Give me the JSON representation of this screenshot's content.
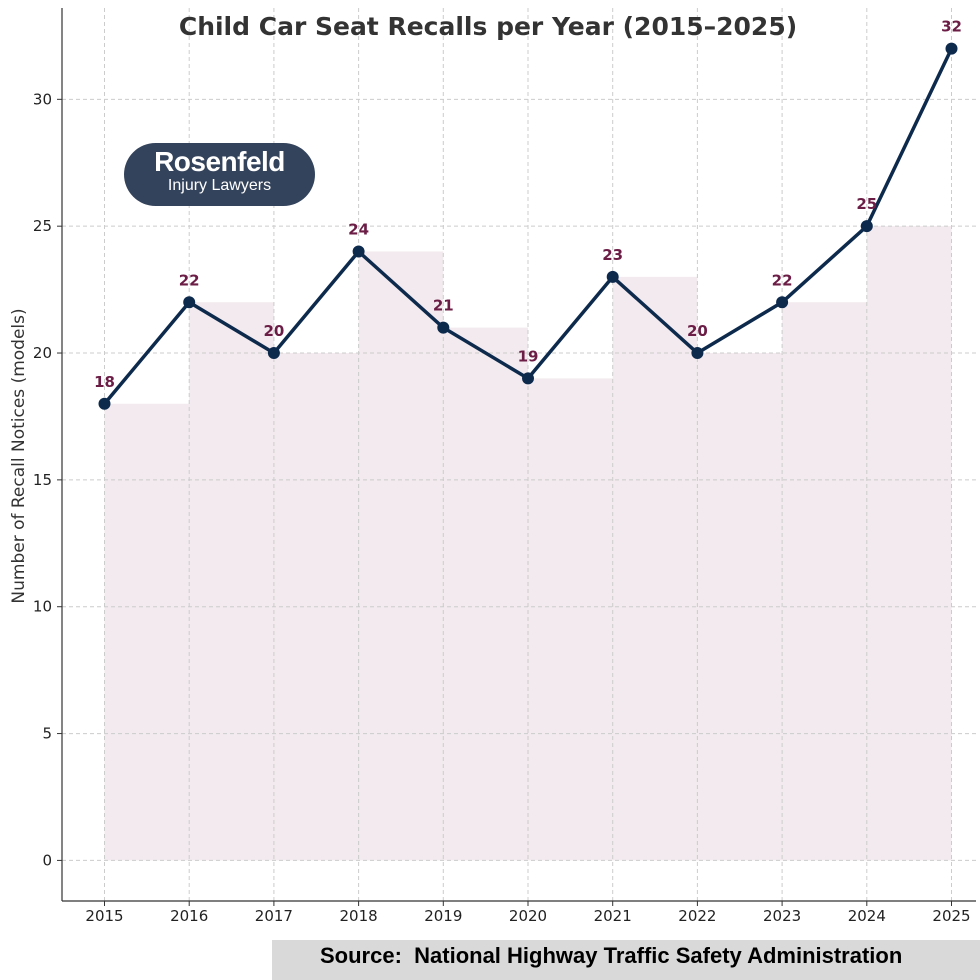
{
  "chart_data": {
    "type": "line",
    "title": "Child Car Seat Recalls per Year (2015–2025)",
    "xlabel": "",
    "ylabel": "Number of Recall Notices (models)",
    "x": [
      "2015",
      "2016",
      "2017",
      "2018",
      "2019",
      "2020",
      "2021",
      "2022",
      "2023",
      "2024",
      "2025"
    ],
    "series": [
      {
        "values": [
          18,
          22,
          20,
          24,
          21,
          19,
          23,
          20,
          22,
          25,
          32
        ]
      }
    ],
    "data_labels": [
      "18",
      "22",
      "20",
      "24",
      "21",
      "19",
      "23",
      "20",
      "22",
      "25",
      "32"
    ],
    "ylim": [
      -1.6,
      33.6
    ],
    "yticks": [
      0,
      5,
      10,
      15,
      20,
      25,
      30
    ],
    "grid": true,
    "step_fill": true,
    "colors": {
      "line": "#0d2a4d",
      "fill": "#f2eaee",
      "labels": "#6b1d46"
    }
  },
  "logo": {
    "name": "Rosenfeld",
    "sub": "Injury Lawyers",
    "text_color": "#ffffff"
  },
  "source": "Source:  National Highway Traffic Safety Administration"
}
